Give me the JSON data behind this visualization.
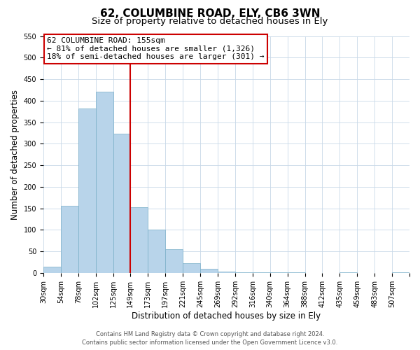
{
  "title": "62, COLUMBINE ROAD, ELY, CB6 3WN",
  "subtitle": "Size of property relative to detached houses in Ely",
  "xlabel": "Distribution of detached houses by size in Ely",
  "ylabel": "Number of detached properties",
  "bin_labels": [
    "30sqm",
    "54sqm",
    "78sqm",
    "102sqm",
    "125sqm",
    "149sqm",
    "173sqm",
    "197sqm",
    "221sqm",
    "245sqm",
    "269sqm",
    "292sqm",
    "316sqm",
    "340sqm",
    "364sqm",
    "388sqm",
    "412sqm",
    "435sqm",
    "459sqm",
    "483sqm",
    "507sqm"
  ],
  "bar_heights": [
    15,
    155,
    382,
    420,
    323,
    153,
    100,
    55,
    22,
    10,
    3,
    2,
    1,
    1,
    1,
    0,
    0,
    1,
    0,
    0,
    1
  ],
  "bar_color": "#b8d4ea",
  "bar_edge_color": "#7aafc8",
  "vline_x_index": 5,
  "vline_color": "#cc0000",
  "annotation_line1": "62 COLUMBINE ROAD: 155sqm",
  "annotation_line2": "← 81% of detached houses are smaller (1,326)",
  "annotation_line3": "18% of semi-detached houses are larger (301) →",
  "annotation_box_color": "#ffffff",
  "annotation_box_edge_color": "#cc0000",
  "ylim": [
    0,
    550
  ],
  "yticks": [
    0,
    50,
    100,
    150,
    200,
    250,
    300,
    350,
    400,
    450,
    500,
    550
  ],
  "footer_line1": "Contains HM Land Registry data © Crown copyright and database right 2024.",
  "footer_line2": "Contains public sector information licensed under the Open Government Licence v3.0.",
  "bg_color": "#ffffff",
  "grid_color": "#c8d8e8",
  "title_fontsize": 11,
  "subtitle_fontsize": 9.5,
  "xlabel_fontsize": 8.5,
  "ylabel_fontsize": 8.5,
  "tick_fontsize": 7,
  "annotation_fontsize": 8,
  "footer_fontsize": 6
}
